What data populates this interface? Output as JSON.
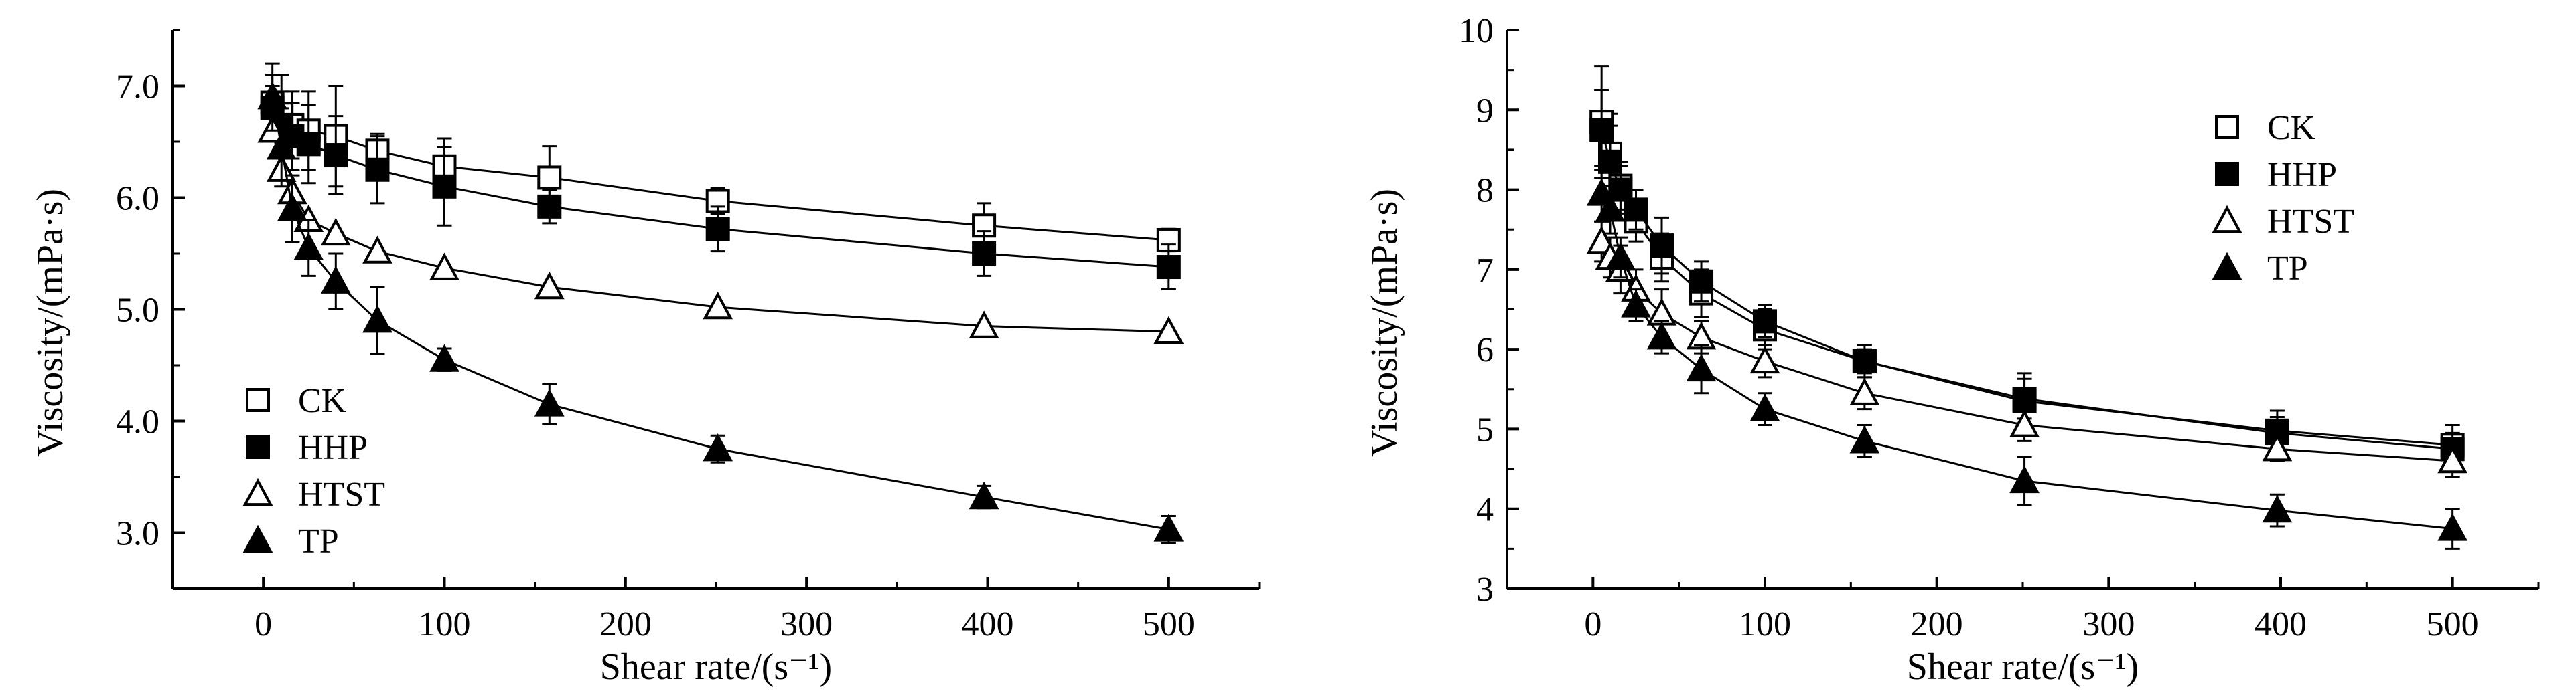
{
  "chart_data": [
    {
      "type": "line",
      "panel": "left",
      "xlabel": "Shear rate/(s⁻¹)",
      "ylabel": "Viscosity/(mPa·s)",
      "xlim": [
        -50,
        550
      ],
      "ylim": [
        2.5,
        7.5
      ],
      "xticks": [
        0,
        100,
        200,
        300,
        400,
        500
      ],
      "yticks": [
        3.0,
        4.0,
        5.0,
        6.0,
        7.0
      ],
      "ytick_labels": [
        "3.0",
        "4.0",
        "5.0",
        "6.0",
        "7.0"
      ],
      "x": [
        5,
        10,
        16,
        25,
        40,
        63,
        100,
        158,
        251,
        398,
        500
      ],
      "legend_position": "left-middle",
      "grid": false,
      "series": [
        {
          "name": "CK",
          "marker": "open-square",
          "values": [
            6.85,
            6.75,
            6.65,
            6.6,
            6.55,
            6.42,
            6.28,
            6.18,
            5.97,
            5.75,
            5.62
          ],
          "errors": [
            0.25,
            0.35,
            0.3,
            0.35,
            0.45,
            0.15,
            0.25,
            0.28,
            0.12,
            0.2,
            0.1
          ]
        },
        {
          "name": "HHP",
          "marker": "filled-square",
          "values": [
            6.8,
            6.65,
            6.55,
            6.48,
            6.38,
            6.25,
            6.1,
            5.92,
            5.72,
            5.5,
            5.38
          ],
          "errors": [
            0.2,
            0.3,
            0.3,
            0.35,
            0.35,
            0.3,
            0.35,
            0.15,
            0.2,
            0.2,
            0.2
          ]
        },
        {
          "name": "HTST",
          "marker": "open-triangle",
          "values": [
            6.6,
            6.25,
            6.05,
            5.8,
            5.68,
            5.52,
            5.37,
            5.2,
            5.02,
            4.85,
            4.8
          ]
        },
        {
          "name": "TP",
          "marker": "filled-triangle",
          "values": [
            6.9,
            6.45,
            5.9,
            5.55,
            5.25,
            4.9,
            4.55,
            4.15,
            3.75,
            3.32,
            3.03
          ],
          "errors": [
            0.3,
            0.35,
            0.3,
            0.25,
            0.25,
            0.3,
            0.1,
            0.18,
            0.12,
            0.1,
            0.12
          ]
        }
      ]
    },
    {
      "type": "line",
      "panel": "right",
      "xlabel": "Shear rate/(s⁻¹)",
      "ylabel": "Viscosity/(mPa·s)",
      "xlim": [
        -50,
        550
      ],
      "ylim": [
        3,
        10
      ],
      "xticks": [
        0,
        100,
        200,
        300,
        400,
        500
      ],
      "yticks": [
        3,
        4,
        5,
        6,
        7,
        8,
        9,
        10
      ],
      "ytick_labels": [
        "3",
        "4",
        "5",
        "6",
        "7",
        "8",
        "9",
        "10"
      ],
      "x": [
        5,
        10,
        16,
        25,
        40,
        63,
        100,
        158,
        251,
        398,
        500
      ],
      "legend_position": "top-right",
      "grid": false,
      "series": [
        {
          "name": "CK",
          "marker": "open-square",
          "values": [
            8.85,
            8.45,
            8.05,
            7.6,
            7.15,
            6.7,
            6.25,
            5.85,
            5.35,
            4.98,
            4.8
          ],
          "errors": [
            0.7,
            0.5,
            0.3,
            0.25,
            0.3,
            0.3,
            0.25,
            0.2,
            0.35,
            0.25,
            0.25
          ]
        },
        {
          "name": "HHP",
          "marker": "filled-square",
          "values": [
            8.75,
            8.35,
            8.0,
            7.75,
            7.3,
            6.85,
            6.35,
            5.85,
            5.38,
            4.95,
            4.75
          ],
          "errors": [
            0.5,
            0.45,
            0.3,
            0.25,
            0.35,
            0.25,
            0.2,
            0.15,
            0.25,
            0.2,
            0.2
          ]
        },
        {
          "name": "HTST",
          "marker": "open-triangle",
          "values": [
            7.35,
            7.15,
            7.0,
            6.75,
            6.45,
            6.15,
            5.85,
            5.45,
            5.05,
            4.75,
            4.6
          ],
          "errors": [
            0.25,
            0.25,
            0.3,
            0.25,
            0.3,
            0.2,
            0.2,
            0.2,
            0.2,
            0.15,
            0.2
          ]
        },
        {
          "name": "TP",
          "marker": "filled-triangle",
          "values": [
            7.95,
            7.75,
            7.15,
            6.55,
            6.15,
            5.75,
            5.25,
            4.85,
            4.35,
            3.98,
            3.75
          ],
          "errors": [
            0.35,
            0.3,
            0.25,
            0.2,
            0.2,
            0.3,
            0.2,
            0.2,
            0.3,
            0.2,
            0.25
          ]
        }
      ]
    }
  ]
}
